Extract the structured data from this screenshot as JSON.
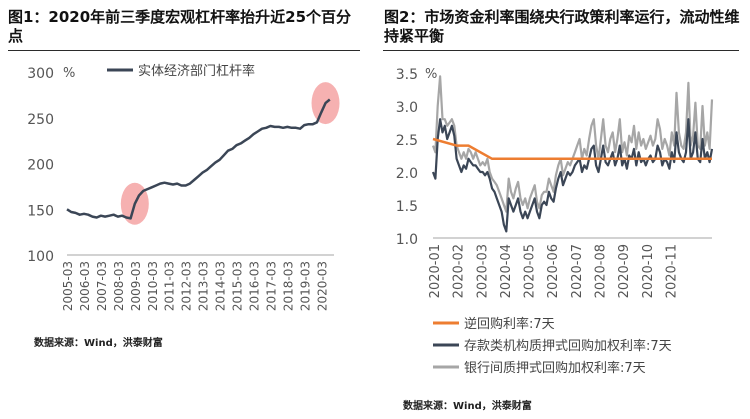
{
  "panel1": {
    "title": "图1：2020年前三季度宏观杠杆率抬升近25个百分点",
    "source": "数据来源：Wind，洪泰财富",
    "chart_data": {
      "type": "line",
      "unit": "%",
      "ylim": [
        100,
        300
      ],
      "yticks": [
        100,
        150,
        200,
        250,
        300
      ],
      "xticks": [
        "2005-03",
        "2006-03",
        "2007-03",
        "2008-03",
        "2009-03",
        "2010-03",
        "2011-03",
        "2012-03",
        "2013-03",
        "2014-03",
        "2015-03",
        "2016-03",
        "2017-03",
        "2018-03",
        "2019-03",
        "2020-03"
      ],
      "series": [
        {
          "name": "实体经济部门杠杆率",
          "color": "#3b4656",
          "x": [
            2005.0,
            2005.25,
            2005.5,
            2005.75,
            2006.0,
            2006.25,
            2006.5,
            2006.75,
            2007.0,
            2007.25,
            2007.5,
            2007.75,
            2008.0,
            2008.25,
            2008.5,
            2008.75,
            2009.0,
            2009.25,
            2009.5,
            2009.75,
            2010.0,
            2010.25,
            2010.5,
            2010.75,
            2011.0,
            2011.25,
            2011.5,
            2011.75,
            2012.0,
            2012.25,
            2012.5,
            2012.75,
            2013.0,
            2013.25,
            2013.5,
            2013.75,
            2014.0,
            2014.25,
            2014.5,
            2014.75,
            2015.0,
            2015.25,
            2015.5,
            2015.75,
            2016.0,
            2016.25,
            2016.5,
            2016.75,
            2017.0,
            2017.25,
            2017.5,
            2017.75,
            2018.0,
            2018.25,
            2018.5,
            2018.75,
            2019.0,
            2019.25,
            2019.5,
            2019.75,
            2020.0,
            2020.25,
            2020.5
          ],
          "values": [
            150,
            147,
            146,
            144,
            145,
            144,
            142,
            141,
            143,
            142,
            143,
            144,
            142,
            143,
            141,
            140,
            156,
            165,
            170,
            172,
            174,
            176,
            178,
            179,
            178,
            177,
            178,
            176,
            176,
            178,
            182,
            186,
            190,
            193,
            197,
            201,
            204,
            209,
            214,
            216,
            220,
            222,
            225,
            228,
            232,
            235,
            238,
            239,
            241,
            240,
            240,
            239,
            240,
            239,
            239,
            238,
            242,
            243,
            243,
            245,
            256,
            266,
            270
          ]
        }
      ],
      "annotations": [
        {
          "type": "ellipse",
          "x": 2009.0,
          "y": 156
        },
        {
          "type": "ellipse",
          "x": 2020.25,
          "y": 266
        }
      ]
    }
  },
  "panel2": {
    "title": "图2：市场资金利率围绕央行政策利率运行，流动性维持紧平衡",
    "source": "数据来源：Wind，洪泰财富",
    "chart_data": {
      "type": "line",
      "unit": "%",
      "ylim": [
        1.0,
        3.5
      ],
      "yticks": [
        1.0,
        1.5,
        2.0,
        2.5,
        3.0,
        3.5
      ],
      "xticks": [
        "2020-01",
        "2020-02",
        "2020-03",
        "2020-04",
        "2020-05",
        "2020-06",
        "2020-07",
        "2020-08",
        "2020-09",
        "2020-10",
        "2020-11"
      ],
      "series": [
        {
          "name": "逆回购利率:7天",
          "color": "#ed7d31",
          "x": [
            0.0,
            1.0,
            1.5,
            2.5,
            4.0,
            11.8
          ],
          "values": [
            2.5,
            2.4,
            2.4,
            2.2,
            2.2,
            2.2
          ]
        },
        {
          "name": "存款类机构质押式回购加权利率:7天",
          "color": "#3b4656",
          "x": [
            0.0,
            0.1,
            0.2,
            0.3,
            0.4,
            0.5,
            0.6,
            0.7,
            0.8,
            0.9,
            1.0,
            1.1,
            1.2,
            1.3,
            1.4,
            1.5,
            1.6,
            1.7,
            1.8,
            1.9,
            2.0,
            2.1,
            2.2,
            2.3,
            2.4,
            2.5,
            2.6,
            2.7,
            2.8,
            2.9,
            3.0,
            3.1,
            3.2,
            3.3,
            3.4,
            3.5,
            3.6,
            3.7,
            3.8,
            3.9,
            4.0,
            4.1,
            4.2,
            4.3,
            4.4,
            4.5,
            4.6,
            4.7,
            4.8,
            4.9,
            5.0,
            5.1,
            5.2,
            5.3,
            5.4,
            5.5,
            5.6,
            5.7,
            5.8,
            5.9,
            6.0,
            6.1,
            6.2,
            6.3,
            6.4,
            6.5,
            6.6,
            6.7,
            6.8,
            6.9,
            7.0,
            7.1,
            7.2,
            7.3,
            7.4,
            7.5,
            7.6,
            7.7,
            7.8,
            7.9,
            8.0,
            8.1,
            8.2,
            8.3,
            8.4,
            8.5,
            8.6,
            8.7,
            8.8,
            8.9,
            9.0,
            9.1,
            9.2,
            9.3,
            9.4,
            9.5,
            9.6,
            9.7,
            9.8,
            9.9,
            10.0,
            10.1,
            10.2,
            10.3,
            10.4,
            10.5,
            10.6,
            10.7,
            10.8,
            10.9,
            11.0,
            11.1,
            11.2,
            11.3,
            11.4,
            11.5,
            11.6,
            11.7,
            11.8
          ],
          "values": [
            2.0,
            1.9,
            2.5,
            2.8,
            2.6,
            2.7,
            2.5,
            2.6,
            2.7,
            2.55,
            2.2,
            2.1,
            2.0,
            2.1,
            2.05,
            2.2,
            2.15,
            2.1,
            2.1,
            2.05,
            2.0,
            2.0,
            1.95,
            2.0,
            1.9,
            1.75,
            1.7,
            1.6,
            1.5,
            1.4,
            1.2,
            1.1,
            1.6,
            1.5,
            1.4,
            1.5,
            1.6,
            1.4,
            1.3,
            1.4,
            1.3,
            1.4,
            1.5,
            1.6,
            1.4,
            1.3,
            1.5,
            1.55,
            1.5,
            1.7,
            1.6,
            1.55,
            1.75,
            1.9,
            2.0,
            1.8,
            1.9,
            2.0,
            1.95,
            2.0,
            2.1,
            2.15,
            2.2,
            2.0,
            2.1,
            2.05,
            2.2,
            2.35,
            2.4,
            2.1,
            2.0,
            2.2,
            2.4,
            2.15,
            2.1,
            2.2,
            2.3,
            2.1,
            2.2,
            2.4,
            2.1,
            2.2,
            2.05,
            2.25,
            2.2,
            2.35,
            2.1,
            2.3,
            2.15,
            2.2,
            2.1,
            2.2,
            2.25,
            2.15,
            2.2,
            2.4,
            2.3,
            2.1,
            2.2,
            2.15,
            2.05,
            2.3,
            2.15,
            2.6,
            2.3,
            2.2,
            2.15,
            2.3,
            2.8,
            2.2,
            2.3,
            2.6,
            2.2,
            2.15,
            2.5,
            2.2,
            2.3,
            2.15,
            2.35
          ]
        },
        {
          "name": "银行间质押式回购加权利率:7天",
          "color": "#a6a6a6",
          "x": [
            0.0,
            0.1,
            0.2,
            0.3,
            0.4,
            0.5,
            0.6,
            0.7,
            0.8,
            0.9,
            1.0,
            1.1,
            1.2,
            1.3,
            1.4,
            1.5,
            1.6,
            1.7,
            1.8,
            1.9,
            2.0,
            2.1,
            2.2,
            2.3,
            2.4,
            2.5,
            2.6,
            2.7,
            2.8,
            2.9,
            3.0,
            3.1,
            3.2,
            3.3,
            3.4,
            3.5,
            3.6,
            3.7,
            3.8,
            3.9,
            4.0,
            4.1,
            4.2,
            4.3,
            4.4,
            4.5,
            4.6,
            4.7,
            4.8,
            4.9,
            5.0,
            5.1,
            5.2,
            5.3,
            5.4,
            5.5,
            5.6,
            5.7,
            5.8,
            5.9,
            6.0,
            6.1,
            6.2,
            6.3,
            6.4,
            6.5,
            6.6,
            6.7,
            6.8,
            6.9,
            7.0,
            7.1,
            7.2,
            7.3,
            7.4,
            7.5,
            7.6,
            7.7,
            7.8,
            7.9,
            8.0,
            8.1,
            8.2,
            8.3,
            8.4,
            8.5,
            8.6,
            8.7,
            8.8,
            8.9,
            9.0,
            9.1,
            9.2,
            9.3,
            9.4,
            9.5,
            9.6,
            9.7,
            9.8,
            9.9,
            10.0,
            10.1,
            10.2,
            10.3,
            10.4,
            10.5,
            10.6,
            10.7,
            10.8,
            10.9,
            11.0,
            11.1,
            11.2,
            11.3,
            11.4,
            11.5,
            11.6,
            11.7,
            11.8
          ],
          "values": [
            2.4,
            2.3,
            3.0,
            3.45,
            2.8,
            2.8,
            2.7,
            2.75,
            2.8,
            2.7,
            2.4,
            2.3,
            2.2,
            2.3,
            2.2,
            2.35,
            2.3,
            2.2,
            2.3,
            2.2,
            2.1,
            2.15,
            2.1,
            2.2,
            2.0,
            1.9,
            1.85,
            1.8,
            1.7,
            1.6,
            1.5,
            1.4,
            1.9,
            1.7,
            1.6,
            1.75,
            1.85,
            1.6,
            1.5,
            1.6,
            1.45,
            1.6,
            1.7,
            1.8,
            1.55,
            1.45,
            1.65,
            1.7,
            1.7,
            1.9,
            1.8,
            1.7,
            1.95,
            2.1,
            2.2,
            1.95,
            2.05,
            2.15,
            2.1,
            2.2,
            2.3,
            2.4,
            2.5,
            2.2,
            2.35,
            2.25,
            2.5,
            2.7,
            2.8,
            2.4,
            2.2,
            2.5,
            2.8,
            2.4,
            2.3,
            2.5,
            2.6,
            2.3,
            2.5,
            2.8,
            2.3,
            2.45,
            2.25,
            2.55,
            2.45,
            2.7,
            2.35,
            2.6,
            2.4,
            2.5,
            2.35,
            2.45,
            2.55,
            2.4,
            2.5,
            2.8,
            2.65,
            2.35,
            2.5,
            2.4,
            2.25,
            2.6,
            2.4,
            3.2,
            2.6,
            2.4,
            2.35,
            2.6,
            3.35,
            2.4,
            2.55,
            3.05,
            2.4,
            2.35,
            3.0,
            2.4,
            2.6,
            2.35,
            3.1
          ]
        }
      ]
    }
  }
}
